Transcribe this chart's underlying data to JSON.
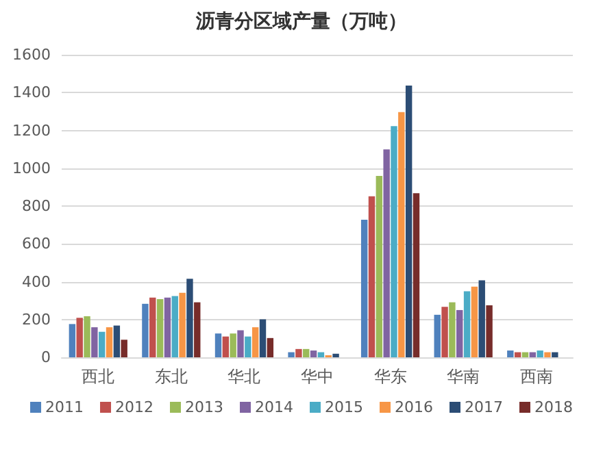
{
  "chart_data": {
    "type": "bar",
    "title": "沥青分区域产量（万吨）",
    "categories": [
      "西北",
      "东北",
      "华北",
      "华中",
      "华东",
      "华南",
      "西南"
    ],
    "series": [
      {
        "name": "2011",
        "color": "#4f81bd",
        "values": [
          176,
          283,
          126,
          27,
          728,
          225,
          36
        ]
      },
      {
        "name": "2012",
        "color": "#c0504d",
        "values": [
          209,
          316,
          110,
          44,
          852,
          267,
          27
        ]
      },
      {
        "name": "2013",
        "color": "#9bbb59",
        "values": [
          217,
          308,
          126,
          44,
          959,
          291,
          27
        ]
      },
      {
        "name": "2014",
        "color": "#8064a2",
        "values": [
          159,
          316,
          143,
          36,
          1100,
          250,
          27
        ]
      },
      {
        "name": "2015",
        "color": "#4bacc6",
        "values": [
          135,
          324,
          110,
          27,
          1223,
          349,
          36
        ]
      },
      {
        "name": "2016",
        "color": "#f79646",
        "values": [
          159,
          341,
          159,
          11,
          1297,
          374,
          27
        ]
      },
      {
        "name": "2017",
        "color": "#2c4d75",
        "values": [
          168,
          415,
          201,
          19,
          1437,
          407,
          27
        ]
      },
      {
        "name": "2018",
        "color": "#772c2a",
        "values": [
          93,
          291,
          102,
          null,
          868,
          275,
          null
        ]
      }
    ],
    "ylim": [
      0,
      1600
    ],
    "yticks": [
      0,
      200,
      400,
      600,
      800,
      1000,
      1200,
      1400,
      1600
    ],
    "grid": "y",
    "legend": "bottom"
  }
}
